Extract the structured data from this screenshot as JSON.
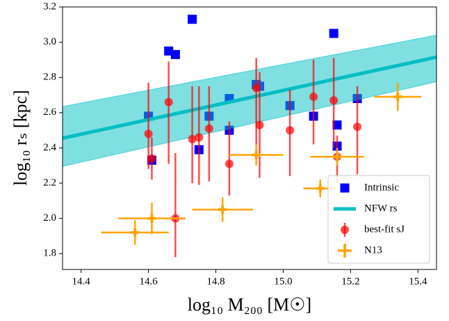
{
  "chart_data": {
    "type": "scatter",
    "xlabel": "log₁₀ M₂₀₀ [M☉]",
    "ylabel": "log₁₀ rₛ [kpc]",
    "xlim": [
      14.345,
      15.455
    ],
    "ylim": [
      1.71,
      3.2
    ],
    "xticks": [
      14.4,
      14.6,
      14.8,
      {
        "value": 15,
        "label": "15.0"
      },
      15.2,
      15.4
    ],
    "yticks": [
      1.8,
      {
        "value": 2,
        "label": "2.0"
      },
      2.2,
      2.4,
      2.6,
      2.8,
      {
        "value": 3,
        "label": "3.0"
      },
      3.2
    ],
    "legend": "lower right",
    "series": [
      {
        "name": "Intrinsic",
        "type": "scatter",
        "color": "#0000ff",
        "x": [
          14.6,
          14.61,
          14.66,
          14.68,
          14.73,
          14.75,
          14.78,
          14.84,
          14.84,
          14.92,
          14.93,
          15.02,
          15.09,
          15.15,
          15.16,
          15.16,
          15.22
        ],
        "values": [
          2.58,
          2.33,
          2.95,
          2.93,
          3.13,
          2.39,
          2.58,
          2.68,
          2.5,
          2.76,
          2.75,
          2.64,
          2.58,
          3.05,
          2.53,
          2.41,
          2.68
        ]
      },
      {
        "name": "NFW rs",
        "type": "line",
        "color": "#00bfc4",
        "x": [
          14.345,
          15.455
        ],
        "values": [
          2.455,
          2.915
        ],
        "lower": [
          2.295,
          2.775
        ],
        "upper": [
          2.635,
          3.04
        ]
      },
      {
        "name": "best-fit sJ",
        "type": "errorbar",
        "color": "#ff0000",
        "x": [
          14.6,
          14.61,
          14.66,
          14.68,
          14.73,
          14.75,
          14.78,
          14.84,
          14.92,
          14.93,
          15.02,
          15.09,
          15.15,
          15.16,
          15.22
        ],
        "values": [
          2.48,
          2.34,
          2.66,
          2.0,
          2.45,
          2.46,
          2.51,
          2.31,
          2.74,
          2.53,
          2.5,
          2.69,
          2.67,
          2.35,
          2.52
        ],
        "yerr_minus": [
          0.2,
          0.12,
          0.35,
          0.22,
          0.25,
          0.27,
          0.3,
          0.18,
          0.37,
          0.3,
          0.26,
          0.27,
          0.27,
          0.15,
          0.27
        ],
        "yerr_plus": [
          0.29,
          0.12,
          0.23,
          0.37,
          0.3,
          0.29,
          0.24,
          0.24,
          0.17,
          0.3,
          0.23,
          0.21,
          0.24,
          0.12,
          0.23
        ]
      },
      {
        "name": "N13",
        "type": "cross",
        "color": "#ffa500",
        "x": [
          14.56,
          14.61,
          14.82,
          14.92,
          15.11,
          15.16,
          15.34
        ],
        "values": [
          1.92,
          2.0,
          2.05,
          2.36,
          2.17,
          2.35,
          2.69
        ],
        "xerr": [
          0.1,
          0.1,
          0.09,
          0.08,
          0.05,
          0.08,
          0.07
        ],
        "yerr": [
          0.07,
          0.09,
          0.07,
          0.06,
          0.05,
          0.05,
          0.08
        ]
      }
    ]
  }
}
